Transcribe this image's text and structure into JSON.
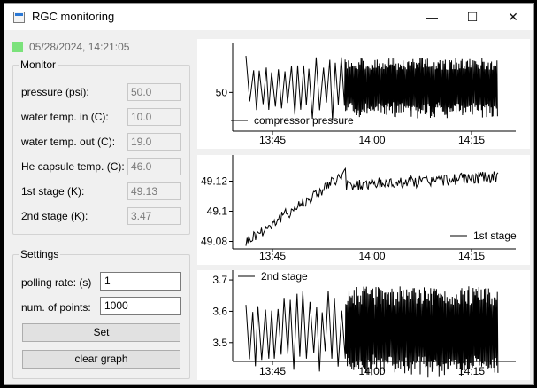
{
  "window": {
    "title": "RGC monitoring",
    "minimize_glyph": "—",
    "maximize_glyph": "☐",
    "close_glyph": "✕"
  },
  "status": {
    "timestamp": "05/28/2024, 14:21:05",
    "light_color": "#7be27b"
  },
  "monitor": {
    "title": "Monitor",
    "rows": [
      {
        "label": "pressure (psi):",
        "value": "50.0"
      },
      {
        "label": "water temp. in (C):",
        "value": "10.0"
      },
      {
        "label": "water temp. out (C):",
        "value": "19.0"
      },
      {
        "label": "He capsule temp. (C):",
        "value": "46.0"
      },
      {
        "label": "1st stage (K):",
        "value": "49.13"
      },
      {
        "label": "2nd stage (K):",
        "value": "3.47"
      }
    ]
  },
  "settings": {
    "title": "Settings",
    "polling_label": "polling rate: (s)",
    "polling_value": "1",
    "points_label": "num. of points:",
    "points_value": "1000",
    "set_label": "Set",
    "clear_label": "clear graph"
  },
  "chart_data": [
    {
      "type": "line",
      "title": "",
      "xlabel": "",
      "ylabel": "",
      "x_ticks": [
        "13:45",
        "14:00",
        "14:15"
      ],
      "y_ticks": [
        "50"
      ],
      "ylim": [
        45,
        56
      ],
      "grid": false,
      "legend_placement": "bottom-left",
      "series": [
        {
          "name": "compressor pressure",
          "pattern": "sparse-oscillation-then-dense",
          "x_start": "13:41",
          "x_end": "14:19",
          "center": 50.5,
          "early_amplitude": 4.5,
          "dense_amplitude": 4
        }
      ]
    },
    {
      "type": "line",
      "title": "",
      "xlabel": "",
      "ylabel": "",
      "x_ticks": [
        "13:45",
        "14:00",
        "14:15"
      ],
      "y_ticks": [
        "49.12",
        "49.1",
        "49.08"
      ],
      "ylim": [
        49.075,
        49.135
      ],
      "grid": false,
      "legend_placement": "bottom-right",
      "series": [
        {
          "name": "1st stage",
          "pattern": "rising-then-plateau",
          "x_start": "13:41",
          "x_end": "14:19",
          "start": 49.08,
          "end": 49.125
        }
      ]
    },
    {
      "type": "line",
      "title": "",
      "xlabel": "",
      "ylabel": "",
      "x_ticks": [
        "13:45",
        "14:00",
        "14:15"
      ],
      "y_ticks": [
        "3.7",
        "3.6",
        "3.5"
      ],
      "ylim": [
        3.44,
        3.72
      ],
      "grid": false,
      "legend_placement": "top-left",
      "series": [
        {
          "name": "2nd stage",
          "pattern": "sparse-oscillation-then-dense",
          "x_start": "13:41",
          "x_end": "14:19",
          "center": 3.53,
          "early_amplitude": 0.14,
          "dense_amplitude": 0.15
        }
      ]
    }
  ]
}
